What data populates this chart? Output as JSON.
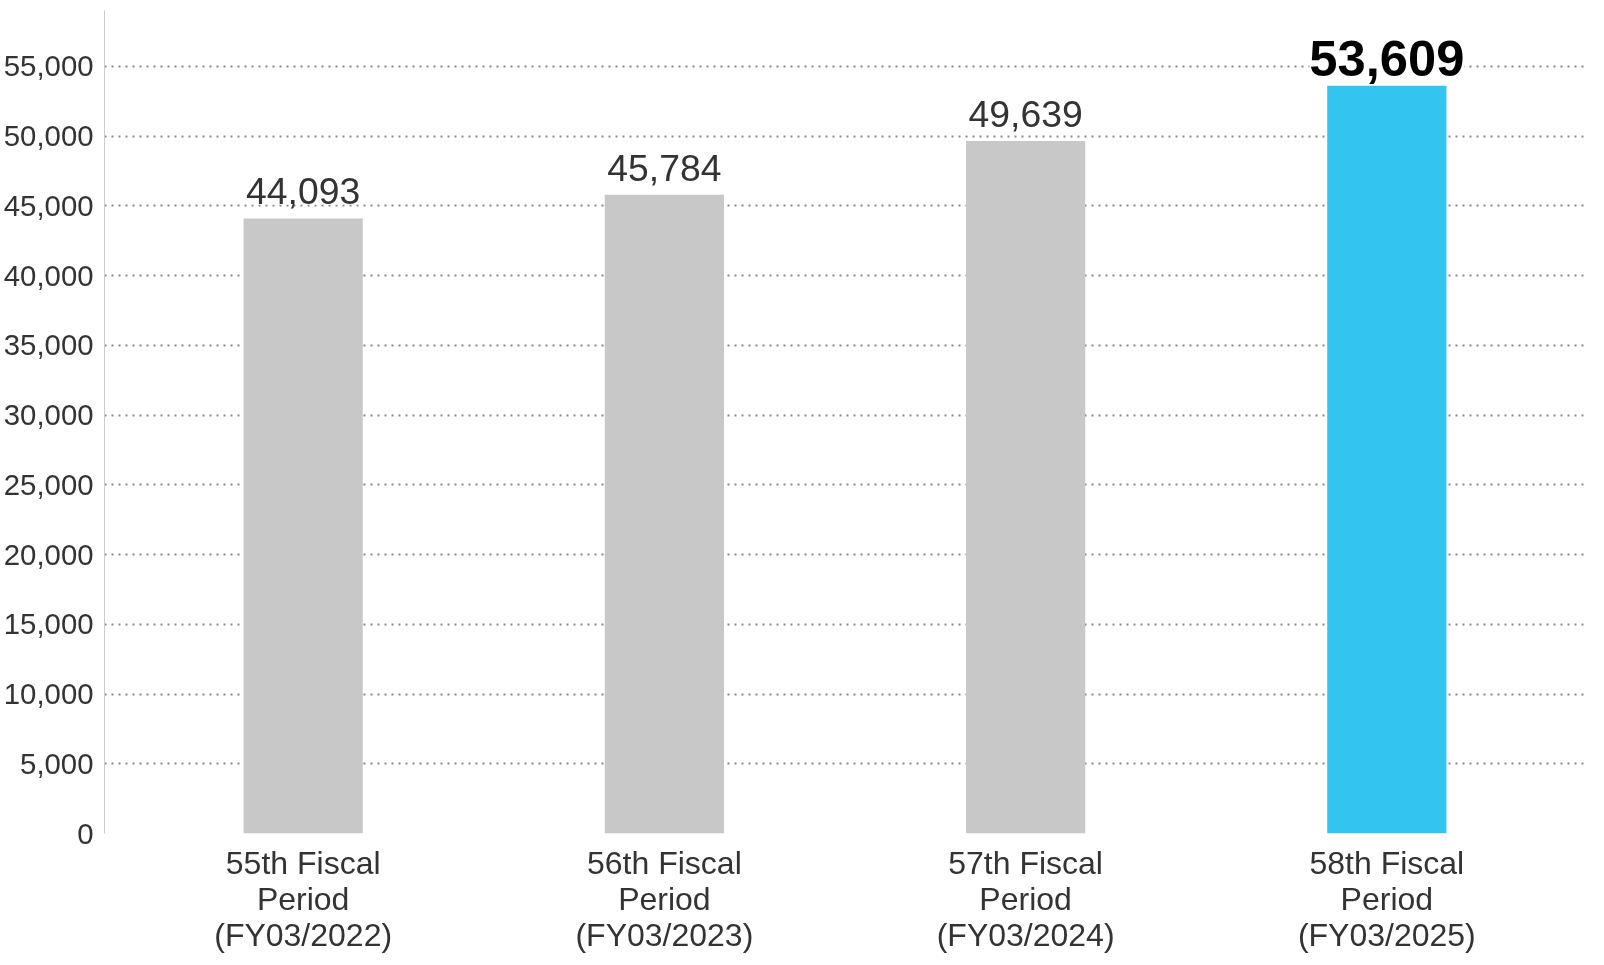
{
  "chart_data": {
    "type": "bar",
    "categories": [
      "55th Fiscal\nPeriod\n(FY03/2022)",
      "56th Fiscal\nPeriod\n(FY03/2023)",
      "57th Fiscal\nPeriod\n(FY03/2024)",
      "58th Fiscal\nPeriod\n(FY03/2025)"
    ],
    "values": [
      44093,
      45784,
      49639,
      53609
    ],
    "value_labels": [
      "44,093",
      "45,784",
      "49,639",
      "53,609"
    ],
    "colors": [
      "#c8c8c8",
      "#c8c8c8",
      "#c8c8c8",
      "#33c5ef"
    ],
    "ylim": [
      0,
      59000
    ],
    "yticks": [
      {
        "value": 0,
        "label": "0"
      },
      {
        "value": 5000,
        "label": "5,000"
      },
      {
        "value": 10000,
        "label": "10,000"
      },
      {
        "value": 15000,
        "label": "15,000"
      },
      {
        "value": 20000,
        "label": "20,000"
      },
      {
        "value": 25000,
        "label": "25,000"
      },
      {
        "value": 30000,
        "label": "30,000"
      },
      {
        "value": 35000,
        "label": "35,000"
      },
      {
        "value": 40000,
        "label": "40,000"
      },
      {
        "value": 45000,
        "label": "45,000"
      },
      {
        "value": 50000,
        "label": "50,000"
      },
      {
        "value": 55000,
        "label": "55,000"
      }
    ],
    "grid": "y"
  }
}
